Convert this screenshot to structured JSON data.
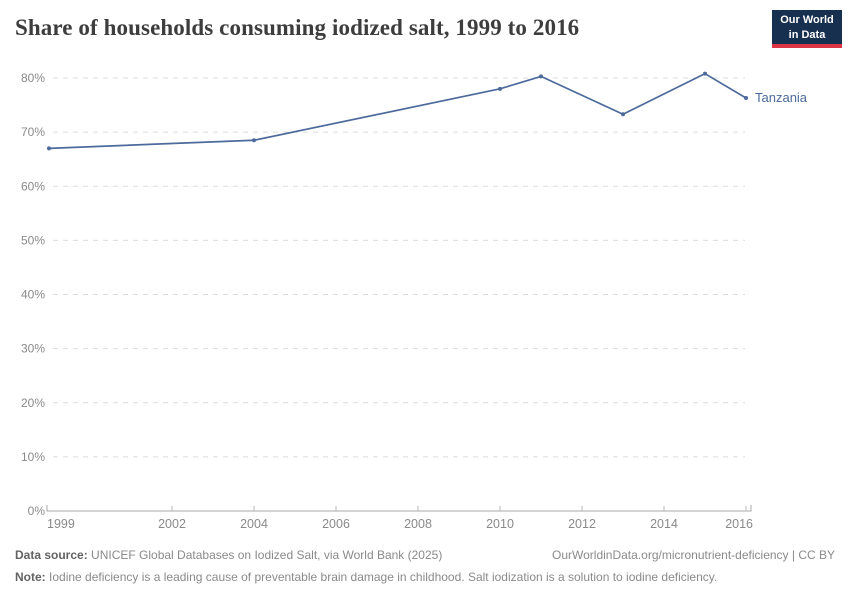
{
  "header": {
    "title": "Share of households consuming iodized salt, 1999 to 2016",
    "logo": {
      "line1": "Our World",
      "line2": "in Data"
    }
  },
  "chart_data": {
    "type": "line",
    "title": "Share of households consuming iodized salt, 1999 to 2016",
    "series": [
      {
        "name": "Tanzania",
        "years": [
          1999,
          2004,
          2010,
          2011,
          2013,
          2015,
          2016
        ],
        "values": [
          67,
          68.5,
          78,
          80.3,
          73.3,
          80.8,
          76.3
        ]
      }
    ],
    "entity_label": "Tanzania",
    "x_ticks": [
      1999,
      2002,
      2004,
      2006,
      2008,
      2010,
      2012,
      2014,
      2016
    ],
    "y_ticks": [
      0,
      10,
      20,
      30,
      40,
      50,
      60,
      70,
      80
    ],
    "x_range": [
      1999,
      2016
    ],
    "y_range": [
      0,
      80
    ],
    "y_tick_suffix": "%",
    "grid": "dashed-horizontal",
    "legend_position": "end-of-line"
  },
  "footer": {
    "datasource_label": "Data source:",
    "datasource_text": " UNICEF Global Databases on Iodized Salt, via World Bank (2025)",
    "link": "OurWorldinData.org/micronutrient-deficiency | CC BY",
    "note_label": "Note:",
    "note_text": " Iodine deficiency is a leading cause of preventable brain damage in childhood. Salt iodization is a solution to iodine deficiency."
  },
  "colors": {
    "line": "#4c6a9c",
    "entity_label": "#4c6a9c",
    "grid": "#dcdcdc",
    "axis": "#a8a8a8",
    "tick": "#b8b8b8",
    "axis_text": "#8a8a8a",
    "title_text": "#3d3d3d",
    "logo_bg": "#18304f",
    "logo_accent": "#dc3545"
  }
}
